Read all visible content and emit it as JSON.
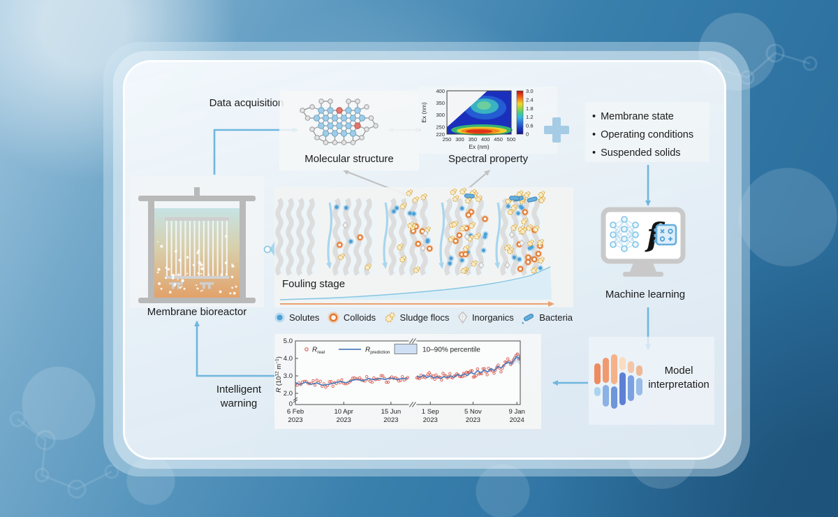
{
  "labels": {
    "data_acquisition": "Data acquisition",
    "intelligent_warning": "Intelligent warning"
  },
  "inputs": {
    "bullet": "•",
    "items": [
      "Membrane state",
      "Operating conditions",
      "Suspended solids"
    ]
  },
  "molecular_structure": {
    "caption": "Molecular structure"
  },
  "spectral_property": {
    "caption": "Spectral property"
  },
  "machine_learning": {
    "caption": "Machine learning",
    "f_symbol": "f"
  },
  "model_interpretation": {
    "caption": "Model interpretation"
  },
  "membrane_bioreactor": {
    "caption": "Membrane bioreactor"
  },
  "fouling": {
    "caption": "Fouling stage",
    "legend": [
      {
        "label": "Solutes"
      },
      {
        "label": "Colloids"
      },
      {
        "label": "Sludge flocs"
      },
      {
        "label": "Inorganics"
      },
      {
        "label": "Bacteria"
      }
    ]
  },
  "chart_data": [
    {
      "type": "heatmap",
      "caption": "Spectral property",
      "xlabel": "Ex (nm)",
      "ylabel": "Ex (nm)",
      "xticks": [
        250,
        300,
        350,
        400,
        450,
        500
      ],
      "yticks": [
        400,
        350,
        300,
        250,
        220
      ],
      "colorbar_ticks": [
        "3.0",
        "2.4",
        "1.8",
        "1.2",
        "0.6",
        "0"
      ],
      "colorbar_range": [
        0,
        3.0
      ],
      "hotspots": [
        {
          "ex": 320,
          "em": 420,
          "intensity": 1.4
        },
        {
          "ex": 225,
          "em": 420,
          "intensity": 3.0
        }
      ]
    },
    {
      "type": "line+scatter",
      "ylabel": "R (10^12 m^-1)",
      "ylabel_parts": {
        "pre": "R",
        "mid1": " (10",
        "sup1": "12",
        "mid2": " m",
        "sup2": "−1",
        "post": ")"
      },
      "yticks": [
        "5.0",
        "4.0",
        "3.0",
        "2.0",
        "0"
      ],
      "ylim": [
        2.0,
        5.0
      ],
      "axis_break_fraction": 0.52,
      "xticks": [
        {
          "line1": "6 Feb",
          "line2": "2023",
          "pos": 0.0
        },
        {
          "line1": "10 Apr",
          "line2": "2023",
          "pos": 0.215
        },
        {
          "line1": "15 Jun",
          "line2": "2023",
          "pos": 0.425
        },
        {
          "line1": "1 Sep",
          "line2": "2023",
          "pos": 0.6
        },
        {
          "line1": "5 Nov",
          "line2": "2023",
          "pos": 0.79
        },
        {
          "line1": "9 Jan",
          "line2": "2024",
          "pos": 0.985
        }
      ],
      "legend": [
        {
          "main": "R",
          "sub": "real"
        },
        {
          "main": "R",
          "sub": "prediction"
        },
        {
          "label": "10–90% percentile"
        }
      ],
      "series": [
        {
          "name": "R_real",
          "style": "scatter",
          "color": "#d85a4c",
          "noise_amplitude": 0.15,
          "n_points": 140
        },
        {
          "name": "R_prediction",
          "style": "line",
          "color": "#4f7fbf",
          "segments": [
            [
              [
                0,
                2.62
              ],
              [
                0.02,
                2.5
              ],
              [
                0.045,
                2.64
              ],
              [
                0.07,
                2.52
              ],
              [
                0.095,
                2.6
              ],
              [
                0.12,
                2.46
              ],
              [
                0.15,
                2.52
              ],
              [
                0.175,
                2.6
              ],
              [
                0.2,
                2.68
              ],
              [
                0.225,
                2.6
              ],
              [
                0.25,
                2.74
              ],
              [
                0.275,
                2.8
              ],
              [
                0.3,
                2.72
              ],
              [
                0.325,
                2.85
              ],
              [
                0.35,
                2.78
              ],
              [
                0.375,
                2.85
              ],
              [
                0.4,
                2.8
              ],
              [
                0.425,
                2.88
              ],
              [
                0.45,
                2.8
              ],
              [
                0.475,
                2.85
              ],
              [
                0.5,
                2.86
              ]
            ],
            [
              [
                0.54,
                3.0
              ],
              [
                0.555,
                2.92
              ],
              [
                0.57,
                3.05
              ],
              [
                0.585,
                2.9
              ],
              [
                0.6,
                3.0
              ],
              [
                0.615,
                2.88
              ],
              [
                0.63,
                2.95
              ],
              [
                0.645,
                2.85
              ],
              [
                0.66,
                2.95
              ],
              [
                0.675,
                2.9
              ],
              [
                0.69,
                3.0
              ],
              [
                0.705,
                2.92
              ],
              [
                0.72,
                3.08
              ],
              [
                0.735,
                3.0
              ],
              [
                0.75,
                3.12
              ],
              [
                0.765,
                3.02
              ],
              [
                0.78,
                3.2
              ],
              [
                0.795,
                3.1
              ],
              [
                0.81,
                3.3
              ],
              [
                0.825,
                3.18
              ],
              [
                0.84,
                3.32
              ],
              [
                0.855,
                3.22
              ],
              [
                0.87,
                3.42
              ],
              [
                0.885,
                3.3
              ],
              [
                0.9,
                3.55
              ],
              [
                0.915,
                3.45
              ],
              [
                0.93,
                3.65
              ],
              [
                0.945,
                3.8
              ],
              [
                0.96,
                3.7
              ],
              [
                0.975,
                3.95
              ],
              [
                0.985,
                4.1
              ],
              [
                1,
                3.92
              ]
            ]
          ]
        },
        {
          "name": "10–90% percentile",
          "style": "band",
          "color": "#cfe0f4",
          "start_fraction": 0.93,
          "max_halfwidth": 0.3
        }
      ]
    }
  ]
}
